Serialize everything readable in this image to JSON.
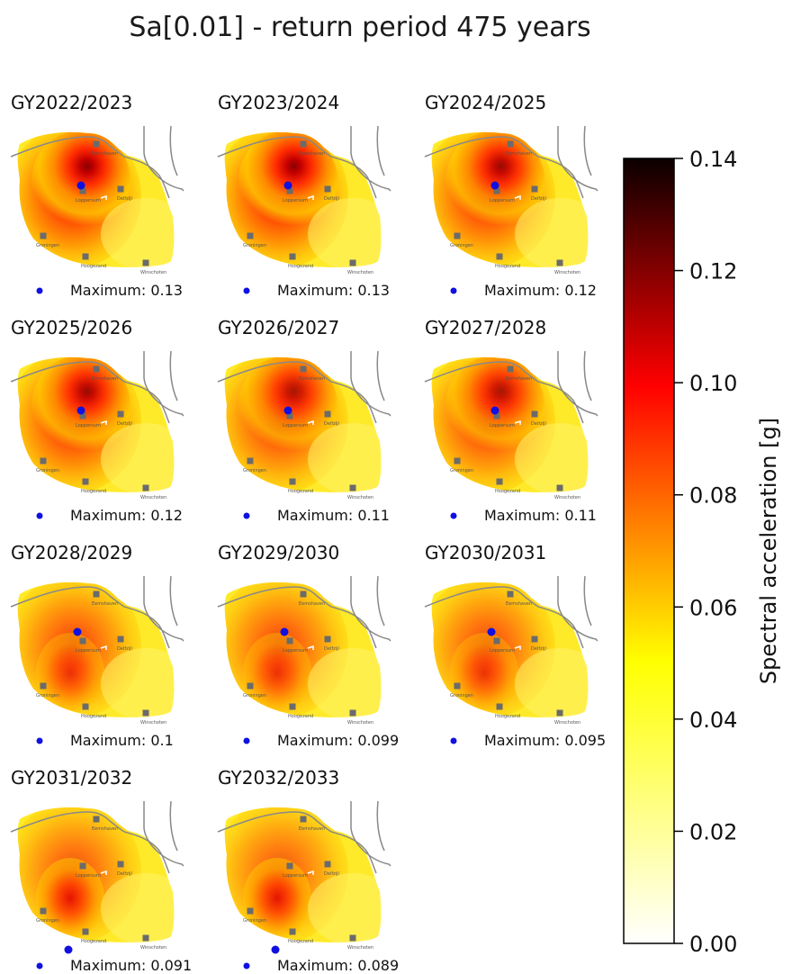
{
  "chart_data": {
    "type": "heatmap",
    "title": "Sa[0.01] - return period 475 years",
    "colorbar": {
      "label": "Spectral acceleration [g]",
      "range": [
        0.0,
        0.14
      ],
      "ticks": [
        "0.00",
        "0.02",
        "0.04",
        "0.06",
        "0.08",
        "0.10",
        "0.12",
        "0.14"
      ],
      "colormap": "hot_r"
    },
    "panels": [
      {
        "title": "GY2022/2023",
        "max_label": "Maximum: 0.13",
        "max": 0.13,
        "max_site": "north"
      },
      {
        "title": "GY2023/2024",
        "max_label": "Maximum: 0.13",
        "max": 0.13,
        "max_site": "north"
      },
      {
        "title": "GY2024/2025",
        "max_label": "Maximum: 0.12",
        "max": 0.12,
        "max_site": "north"
      },
      {
        "title": "GY2025/2026",
        "max_label": "Maximum: 0.12",
        "max": 0.12,
        "max_site": "north"
      },
      {
        "title": "GY2026/2027",
        "max_label": "Maximum: 0.11",
        "max": 0.11,
        "max_site": "north"
      },
      {
        "title": "GY2027/2028",
        "max_label": "Maximum: 0.11",
        "max": 0.11,
        "max_site": "north"
      },
      {
        "title": "GY2028/2029",
        "max_label": "Maximum: 0.1",
        "max": 0.1,
        "max_site": "mid"
      },
      {
        "title": "GY2029/2030",
        "max_label": "Maximum: 0.099",
        "max": 0.099,
        "max_site": "mid"
      },
      {
        "title": "GY2030/2031",
        "max_label": "Maximum: 0.095",
        "max": 0.095,
        "max_site": "mid"
      },
      {
        "title": "GY2031/2032",
        "max_label": "Maximum: 0.091",
        "max": 0.091,
        "max_site": "south"
      },
      {
        "title": "GY2032/2033",
        "max_label": "Maximum: 0.089",
        "max": 0.089,
        "max_site": "south"
      }
    ],
    "cities": [
      "Eemshaven",
      "Delfzijl",
      "Loppersum",
      "Groningen",
      "Hoogezand",
      "Winschoten"
    ],
    "legend_marker": "blue dot = location of maximum"
  }
}
